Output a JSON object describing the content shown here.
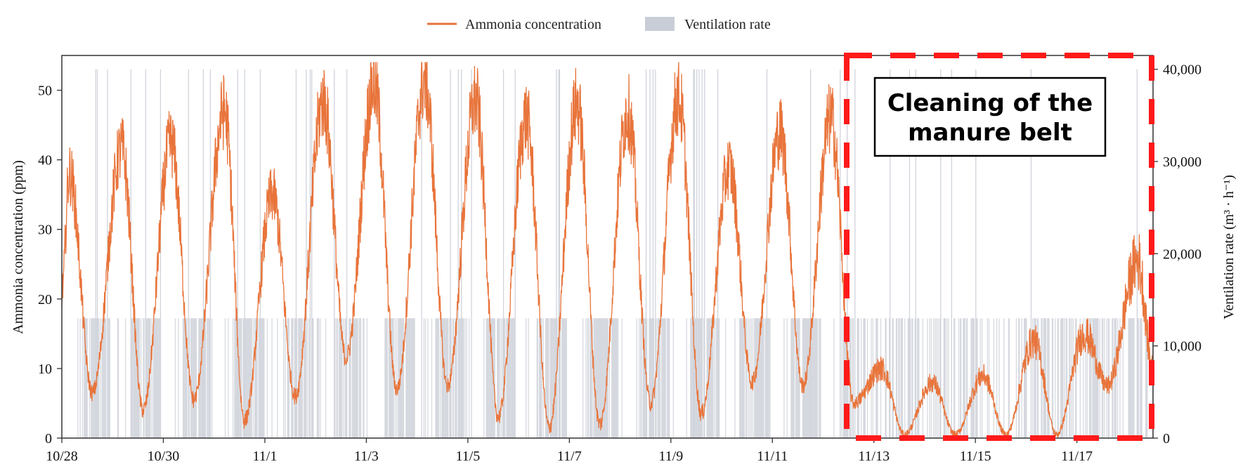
{
  "colors": {
    "ammonia": "#E8743B",
    "ventilation": "#C9CDD6",
    "highlight": "#FF1A1A",
    "axis": "#333333"
  },
  "chart_data": {
    "type": "line",
    "title": "",
    "x_tick_labels": [
      "10/28",
      "10/30",
      "11/1",
      "11/3",
      "11/5",
      "11/7",
      "11/9",
      "11/11",
      "11/13",
      "11/15",
      "11/17"
    ],
    "x_range_days": [
      0,
      21.5
    ],
    "ylabel_left": "Ammonia concentration (ppm)",
    "ylabel_right": "Ventilation rate (m³ · h⁻¹)",
    "ylim_left": [
      0,
      55
    ],
    "ylim_right": [
      0,
      41500
    ],
    "yticks_left": [
      "0",
      "10",
      "20",
      "30",
      "40",
      "50"
    ],
    "yticks_right": [
      "0",
      "10,000",
      "20,000",
      "30,000",
      "40,000"
    ],
    "legend": {
      "placement": "top-center",
      "entries": [
        {
          "label": "Ammonia concentration",
          "style": "line"
        },
        {
          "label": "Ventilation rate",
          "style": "bar"
        }
      ]
    },
    "series": [
      {
        "name": "Ammonia concentration",
        "axis": "left",
        "daily_peaks": [
          {
            "day": 0.15,
            "value": 38
          },
          {
            "day": 1.18,
            "value": 41.5
          },
          {
            "day": 2.15,
            "value": 42.5
          },
          {
            "day": 3.2,
            "value": 47
          },
          {
            "day": 4.15,
            "value": 35
          },
          {
            "day": 5.15,
            "value": 48.5
          },
          {
            "day": 6.15,
            "value": 51
          },
          {
            "day": 7.15,
            "value": 51.5
          },
          {
            "day": 8.15,
            "value": 48.5
          },
          {
            "day": 9.15,
            "value": 46
          },
          {
            "day": 10.15,
            "value": 48
          },
          {
            "day": 11.15,
            "value": 47
          },
          {
            "day": 12.15,
            "value": 49
          },
          {
            "day": 13.15,
            "value": 39
          },
          {
            "day": 14.15,
            "value": 44
          },
          {
            "day": 15.15,
            "value": 46
          },
          {
            "day": 16.15,
            "value": 10
          },
          {
            "day": 17.15,
            "value": 8
          },
          {
            "day": 18.15,
            "value": 9
          },
          {
            "day": 19.15,
            "value": 14
          },
          {
            "day": 20.15,
            "value": 15
          },
          {
            "day": 21.2,
            "value": 25.5
          }
        ],
        "daily_lows": [
          {
            "day": 0.6,
            "value": 6.5
          },
          {
            "day": 1.6,
            "value": 4
          },
          {
            "day": 2.6,
            "value": 5.5
          },
          {
            "day": 3.6,
            "value": 2.5
          },
          {
            "day": 4.6,
            "value": 6
          },
          {
            "day": 5.6,
            "value": 11.5
          },
          {
            "day": 6.6,
            "value": 7
          },
          {
            "day": 7.6,
            "value": 7.5
          },
          {
            "day": 8.6,
            "value": 3
          },
          {
            "day": 9.6,
            "value": 1.5
          },
          {
            "day": 10.6,
            "value": 2
          },
          {
            "day": 11.6,
            "value": 5
          },
          {
            "day": 12.6,
            "value": 3.5
          },
          {
            "day": 13.6,
            "value": 8
          },
          {
            "day": 14.6,
            "value": 7.5
          },
          {
            "day": 15.6,
            "value": 5
          },
          {
            "day": 16.6,
            "value": 0.5
          },
          {
            "day": 17.6,
            "value": 0.5
          },
          {
            "day": 18.6,
            "value": 0.5
          },
          {
            "day": 19.6,
            "value": 0.5
          },
          {
            "day": 20.6,
            "value": 7.5
          },
          {
            "day": 21.5,
            "value": 10
          }
        ]
      },
      {
        "name": "Ventilation rate",
        "axis": "right",
        "typical_level": 13000,
        "max_level": 40000
      }
    ],
    "annotation": {
      "lines": [
        "Cleaning of the",
        "manure belt"
      ],
      "start_day": 15.45,
      "end_day": 21.5
    }
  }
}
